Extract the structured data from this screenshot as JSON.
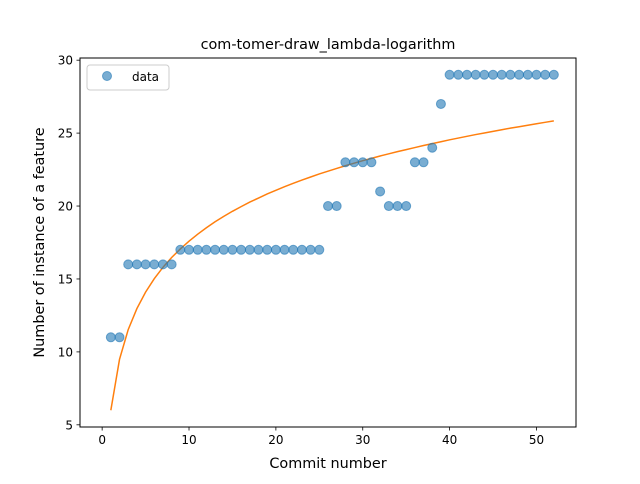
{
  "chart_data": {
    "type": "scatter",
    "title": "com-tomer-draw_lambda-logarithm",
    "xlabel": "Commit number",
    "ylabel": "Number of instance of a feature",
    "xlim": [
      -2.55,
      54.55
    ],
    "ylim": [
      4.85,
      30.15
    ],
    "xticks": [
      0,
      10,
      20,
      30,
      40,
      50
    ],
    "yticks": [
      5,
      10,
      15,
      20,
      25,
      30
    ],
    "legend": {
      "position": "upper-left",
      "label": "data"
    },
    "colors": {
      "data": "#1f77b4",
      "fit": "#ff7f0e"
    },
    "series": [
      {
        "name": "data",
        "kind": "scatter",
        "x": [
          1,
          2,
          3,
          4,
          5,
          6,
          7,
          8,
          9,
          10,
          11,
          12,
          13,
          14,
          15,
          16,
          17,
          18,
          19,
          20,
          21,
          22,
          23,
          24,
          25,
          26,
          27,
          28,
          29,
          30,
          31,
          32,
          33,
          34,
          35,
          36,
          37,
          38,
          39,
          40,
          41,
          42,
          43,
          44,
          45,
          46,
          47,
          48,
          49,
          50,
          51,
          52
        ],
        "y": [
          11,
          11,
          16,
          16,
          16,
          16,
          16,
          16,
          17,
          17,
          17,
          17,
          17,
          17,
          17,
          17,
          17,
          17,
          17,
          17,
          17,
          17,
          17,
          17,
          17,
          20,
          20,
          23,
          23,
          23,
          23,
          21,
          20,
          20,
          20,
          23,
          23,
          24,
          27,
          29,
          29,
          29,
          29,
          29,
          29,
          29,
          29,
          29,
          29,
          29,
          29,
          29
        ]
      },
      {
        "kind": "line",
        "x": [
          1,
          2,
          3,
          4,
          5,
          6,
          7,
          8,
          9,
          10,
          11,
          12,
          13,
          14,
          15,
          16,
          17,
          18,
          19,
          20,
          21,
          22,
          23,
          24,
          25,
          26,
          27,
          28,
          29,
          30,
          31,
          32,
          33,
          34,
          35,
          36,
          37,
          38,
          39,
          40,
          41,
          42,
          43,
          44,
          45,
          46,
          47,
          48,
          49,
          50,
          51,
          52
        ],
        "y": [
          6.0,
          9.49,
          11.53,
          12.97,
          14.1,
          15.02,
          15.8,
          16.47,
          17.06,
          17.59,
          18.07,
          18.51,
          18.92,
          19.29,
          19.64,
          19.96,
          20.27,
          20.55,
          20.83,
          21.08,
          21.33,
          21.56,
          21.78,
          21.99,
          22.2,
          22.39,
          22.58,
          22.76,
          22.94,
          23.11,
          23.27,
          23.43,
          23.58,
          23.73,
          23.87,
          24.01,
          24.15,
          24.28,
          24.41,
          24.54,
          24.66,
          24.78,
          24.9,
          25.01,
          25.12,
          25.23,
          25.34,
          25.44,
          25.54,
          25.64,
          25.74,
          25.84
        ]
      }
    ]
  }
}
